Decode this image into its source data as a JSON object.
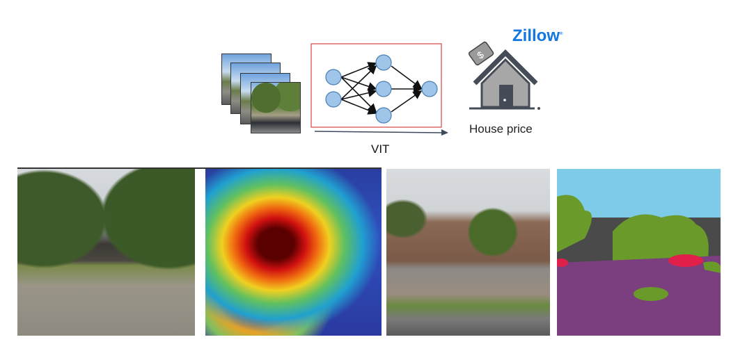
{
  "diagram": {
    "model_label": "VIT",
    "brand": "Zillow",
    "output_label": "House price",
    "colors": {
      "box_border": "#d9534f",
      "node_fill": "#9fc5e8",
      "node_stroke": "#4a7fb5",
      "brand": "#1277e1",
      "arrow": "#3d4a5c"
    },
    "icons": [
      "image-stack-icon",
      "neural-network-icon",
      "house-price-tag-icon"
    ]
  },
  "panels": [
    {
      "name": "street-view-photo"
    },
    {
      "name": "attention-heatmap"
    },
    {
      "name": "street-view-photo-apartments"
    },
    {
      "name": "semantic-segmentation-map"
    }
  ]
}
